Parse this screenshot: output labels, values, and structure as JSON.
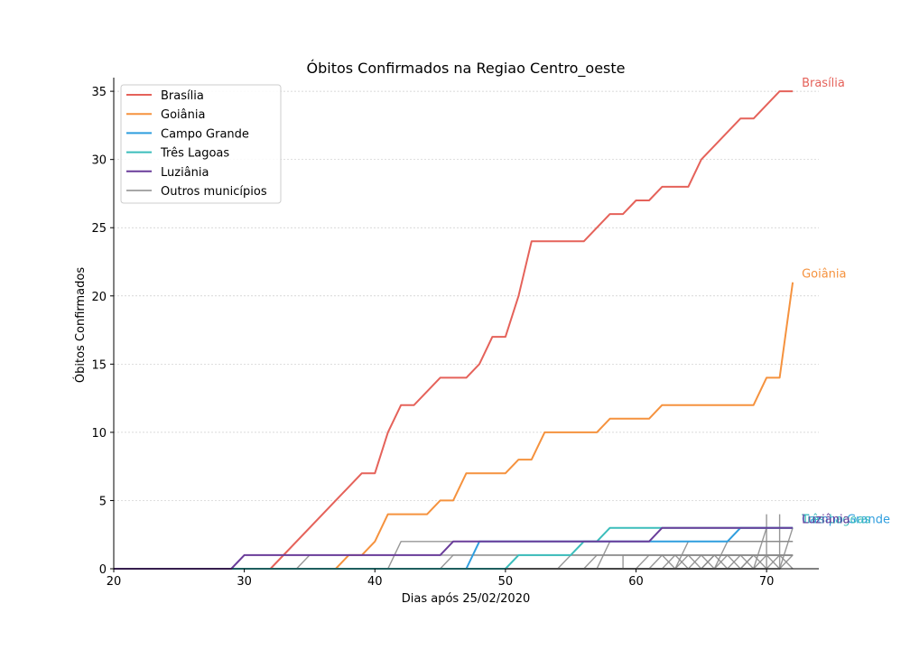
{
  "chart_data": {
    "type": "line",
    "title": "Óbitos Confirmados na Regiao Centro_oeste",
    "xlabel": "Dias após 25/02/2020",
    "ylabel": "Óbitos Confirmados",
    "xlim": [
      20,
      74
    ],
    "ylim": [
      0,
      36
    ],
    "x_ticks": [
      20,
      30,
      40,
      50,
      60,
      70
    ],
    "y_ticks": [
      0,
      5,
      10,
      15,
      20,
      25,
      30,
      35
    ],
    "grid": "horizontal",
    "legend_position": "top-left",
    "series": [
      {
        "name": "Brasília",
        "color": "#e5625a",
        "end_label": "Brasília",
        "points": [
          [
            20,
            0
          ],
          [
            32,
            0
          ],
          [
            39,
            7
          ],
          [
            40,
            7
          ],
          [
            41,
            10
          ],
          [
            42,
            12
          ],
          [
            43,
            12
          ],
          [
            45,
            14
          ],
          [
            47,
            14
          ],
          [
            48,
            15
          ],
          [
            49,
            17
          ],
          [
            50,
            17
          ],
          [
            51,
            20
          ],
          [
            52,
            24
          ],
          [
            56,
            24
          ],
          [
            58,
            26
          ],
          [
            59,
            26
          ],
          [
            60,
            27
          ],
          [
            61,
            27
          ],
          [
            62,
            28
          ],
          [
            64,
            28
          ],
          [
            65,
            30
          ],
          [
            68,
            33
          ],
          [
            69,
            33
          ],
          [
            71,
            35
          ],
          [
            72,
            35
          ]
        ]
      },
      {
        "name": "Goiânia",
        "color": "#f5923e",
        "end_label": "Goiânia",
        "points": [
          [
            20,
            0
          ],
          [
            37,
            0
          ],
          [
            38,
            1
          ],
          [
            39,
            1
          ],
          [
            40,
            2
          ],
          [
            41,
            4
          ],
          [
            44,
            4
          ],
          [
            45,
            5
          ],
          [
            46,
            5
          ],
          [
            47,
            7
          ],
          [
            50,
            7
          ],
          [
            51,
            8
          ],
          [
            52,
            8
          ],
          [
            53,
            10
          ],
          [
            57,
            10
          ],
          [
            58,
            11
          ],
          [
            61,
            11
          ],
          [
            62,
            12
          ],
          [
            69,
            12
          ],
          [
            70,
            14
          ],
          [
            71,
            14
          ],
          [
            72,
            21
          ]
        ]
      },
      {
        "name": "Campo Grande",
        "color": "#2f9ede",
        "end_label": "Campo Grande",
        "points": [
          [
            20,
            0
          ],
          [
            47,
            0
          ],
          [
            48,
            2
          ],
          [
            67,
            2
          ],
          [
            68,
            3
          ],
          [
            72,
            3
          ]
        ]
      },
      {
        "name": "Três Lagoas",
        "color": "#3bbdbb",
        "end_label": "Três Lagoas",
        "points": [
          [
            20,
            0
          ],
          [
            50,
            0
          ],
          [
            51,
            1
          ],
          [
            55,
            1
          ],
          [
            56,
            2
          ],
          [
            57,
            2
          ],
          [
            58,
            3
          ],
          [
            72,
            3
          ]
        ]
      },
      {
        "name": "Luziânia",
        "color": "#6a3d9a",
        "end_label": "Luziânia",
        "points": [
          [
            20,
            0
          ],
          [
            29,
            0
          ],
          [
            30,
            1
          ],
          [
            45,
            1
          ],
          [
            46,
            2
          ],
          [
            61,
            2
          ],
          [
            62,
            3
          ],
          [
            72,
            3
          ]
        ]
      },
      {
        "name": "Outros municípios",
        "color": "#8c8c8c",
        "end_label": "",
        "points": [],
        "others": [
          [
            [
              20,
              0
            ],
            [
              34,
              0
            ],
            [
              35,
              1
            ],
            [
              72,
              1
            ]
          ],
          [
            [
              20,
              0
            ],
            [
              41,
              0
            ],
            [
              42,
              2
            ],
            [
              72,
              2
            ]
          ],
          [
            [
              20,
              0
            ],
            [
              45,
              0
            ],
            [
              46,
              1
            ],
            [
              72,
              1
            ]
          ],
          [
            [
              20,
              0
            ],
            [
              54,
              0
            ],
            [
              55,
              1
            ],
            [
              72,
              1
            ]
          ],
          [
            [
              20,
              0
            ],
            [
              56,
              0
            ],
            [
              57,
              1
            ],
            [
              72,
              1
            ]
          ],
          [
            [
              20,
              0
            ],
            [
              57,
              0
            ],
            [
              58,
              2
            ],
            [
              72,
              2
            ]
          ],
          [
            [
              20,
              0
            ],
            [
              60,
              0
            ],
            [
              61,
              1
            ],
            [
              72,
              1
            ]
          ],
          [
            [
              20,
              0
            ],
            [
              61,
              0
            ],
            [
              62,
              1
            ],
            [
              63,
              0
            ],
            [
              64,
              1
            ],
            [
              65,
              0
            ],
            [
              66,
              1
            ],
            [
              67,
              0
            ],
            [
              68,
              1
            ],
            [
              69,
              0
            ],
            [
              70,
              1
            ],
            [
              71,
              0
            ],
            [
              72,
              1
            ]
          ],
          [
            [
              20,
              0
            ],
            [
              62,
              0
            ],
            [
              63,
              1
            ],
            [
              64,
              0
            ],
            [
              65,
              1
            ],
            [
              66,
              0
            ],
            [
              67,
              1
            ],
            [
              68,
              0
            ],
            [
              69,
              1
            ],
            [
              70,
              0
            ],
            [
              71,
              1
            ],
            [
              72,
              0
            ]
          ],
          [
            [
              20,
              0
            ],
            [
              59,
              0
            ],
            [
              59,
              1
            ],
            [
              72,
              1
            ]
          ],
          [
            [
              20,
              0
            ],
            [
              63,
              0
            ],
            [
              64,
              2
            ],
            [
              72,
              2
            ]
          ],
          [
            [
              20,
              0
            ],
            [
              66,
              0
            ],
            [
              67,
              2
            ],
            [
              72,
              2
            ]
          ],
          [
            [
              20,
              0
            ],
            [
              69,
              0
            ],
            [
              70,
              3
            ],
            [
              72,
              3
            ]
          ],
          [
            [
              20,
              0
            ],
            [
              70,
              0
            ],
            [
              70,
              4
            ]
          ],
          [
            [
              20,
              0
            ],
            [
              71,
              0
            ],
            [
              71,
              4
            ]
          ],
          [
            [
              20,
              0
            ],
            [
              71,
              0
            ],
            [
              72,
              3
            ]
          ],
          [
            [
              20,
              0
            ],
            [
              65,
              0
            ],
            [
              66,
              1
            ],
            [
              72,
              1
            ]
          ],
          [
            [
              20,
              0
            ],
            [
              68,
              0
            ],
            [
              69,
              1
            ],
            [
              72,
              1
            ]
          ]
        ]
      }
    ]
  }
}
